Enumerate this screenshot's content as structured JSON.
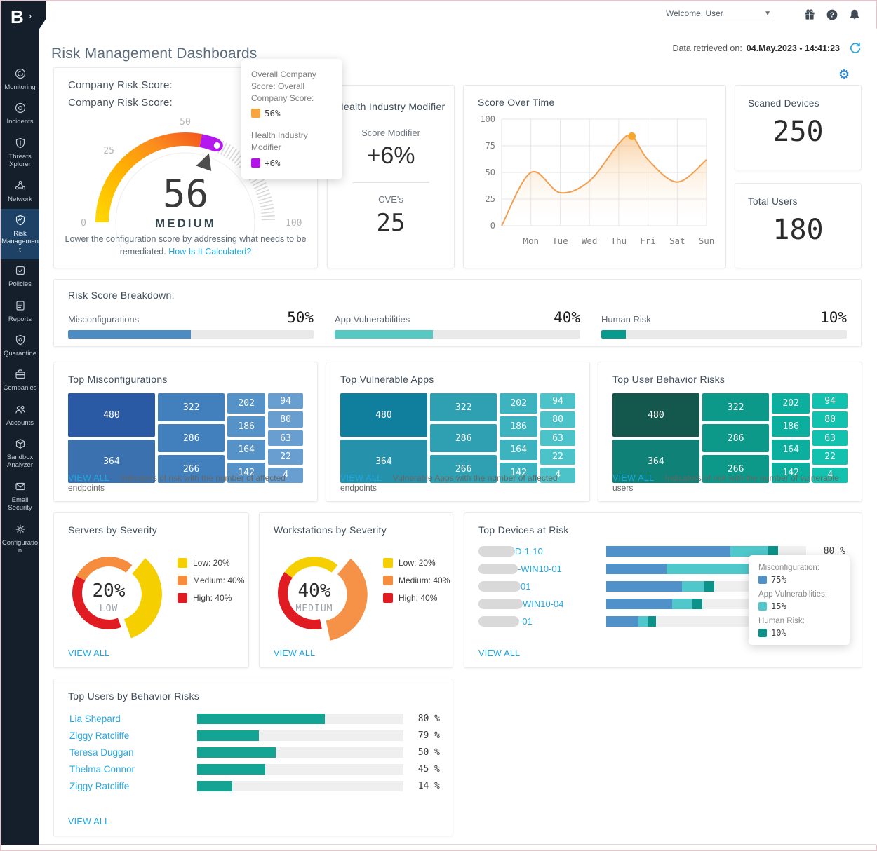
{
  "logo": {
    "letter": "B"
  },
  "topbar": {
    "welcome": "Welcome, User"
  },
  "sidebar": {
    "items": [
      {
        "label": "Monitoring",
        "icon": "monitoring",
        "active": false
      },
      {
        "label": "Incidents",
        "icon": "incidents",
        "active": false
      },
      {
        "label": "Threats Xplorer",
        "icon": "threats",
        "active": false
      },
      {
        "label": "Network",
        "icon": "network",
        "active": false
      },
      {
        "label": "Risk Management",
        "icon": "risk",
        "active": true
      },
      {
        "label": "Policies",
        "icon": "policies",
        "active": false
      },
      {
        "label": "Reports",
        "icon": "reports",
        "active": false
      },
      {
        "label": "Quarantine",
        "icon": "quarantine",
        "active": false
      },
      {
        "label": "Companies",
        "icon": "companies",
        "active": false
      },
      {
        "label": "Accounts",
        "icon": "accounts",
        "active": false
      },
      {
        "label": "Sandbox Analyzer",
        "icon": "sandbox",
        "active": false
      },
      {
        "label": "Email Security",
        "icon": "email",
        "active": false
      },
      {
        "label": "Configuration",
        "icon": "configuration",
        "active": false
      }
    ]
  },
  "header": {
    "title": "Risk Management Dashboards",
    "retrieved_label": "Data retrieved on:",
    "retrieved_value": "04.May.2023 - 14:41:23"
  },
  "company_risk": {
    "label_row1": "Company Risk Score:",
    "label_row2": "Company Risk Score:",
    "score": "56",
    "level": "MEDIUM",
    "description": "Lower the configuration score by addressing what needs to be remediated.",
    "link_label": "How Is It Calculated?",
    "ticks": [
      "0",
      "25",
      "50",
      "100"
    ]
  },
  "score_tooltip": {
    "company_label": "Overall Company Score: Overall Company Score:",
    "company_value": "56%",
    "company_color": "#f9a43c",
    "modifier_label": "Health Industry Modifier",
    "modifier_value": "+6%",
    "modifier_color": "#b312ea"
  },
  "health_modifier": {
    "title": "Health Industry Modifier",
    "score_label": "Score Modifier",
    "score_value": "+6%",
    "cve_label": "CVE's",
    "cve_value": "25"
  },
  "scanned_devices": {
    "title": "Scaned Devices",
    "value": "250"
  },
  "total_users": {
    "title": "Total Users",
    "value": "180"
  },
  "risk_breakdown": {
    "title": "Risk Score Breakdown:",
    "items": [
      {
        "label": "Misconfigurations",
        "value": "50%",
        "pct": 50,
        "color": "#4d8cc3"
      },
      {
        "label": "App Vulnerabilities",
        "value": "40%",
        "pct": 40,
        "color": "#58c8c3"
      },
      {
        "label": "Human Risk",
        "value": "10%",
        "pct": 10,
        "color": "#089a8d"
      }
    ]
  },
  "treemaps": {
    "columns": [
      [
        480,
        364
      ],
      [
        322,
        286,
        266
      ],
      [
        202,
        186,
        164,
        142
      ],
      [
        94,
        80,
        63,
        22,
        4
      ]
    ],
    "col_widths": [
      "37%",
      "28.5%",
      "16%",
      "15%"
    ],
    "cards": [
      {
        "title": "Top Misconfigurations",
        "view_all": "VIEW ALL",
        "caption": "Indicators of risk with the number of affected endpoints",
        "palette": [
          "#2b5aa5",
          "#3a71ae",
          "#4280bd",
          "#5492c7",
          "#699fd0"
        ]
      },
      {
        "title": "Top Vulnerable Apps",
        "view_all": "VIEW ALL",
        "caption": "Vulnerable Apps with the number of affected endpoints",
        "palette": [
          "#0f7f9d",
          "#2691aa",
          "#2fa0b2",
          "#3db3bf",
          "#4cc3c9"
        ]
      },
      {
        "title": "Top User Behavior Risks",
        "view_all": "VIEW ALL",
        "caption": "Indicators of risk with the number of vulnerable users",
        "palette": [
          "#14574d",
          "#0f8176",
          "#0d998a",
          "#0caf9e",
          "#12c2ae"
        ]
      }
    ]
  },
  "severity_donuts": [
    {
      "title": "Servers by Severity",
      "center_value": "20%",
      "center_label": "LOW",
      "view_all": "VIEW ALL",
      "legend": [
        {
          "label": "Low: 20%",
          "color": "#f6cf01"
        },
        {
          "label": "Medium: 40%",
          "color": "#f68d3e"
        },
        {
          "label": "High: 40%",
          "color": "#e11b22"
        }
      ],
      "segments": [
        {
          "name": "medium",
          "color": "#f68d3e",
          "start": -62,
          "end": 40,
          "exploded": false
        },
        {
          "name": "low",
          "color": "#f6cf01",
          "start": 40,
          "end": 160,
          "exploded": true
        },
        {
          "name": "high",
          "color": "#e11b22",
          "start": 160,
          "end": 298,
          "exploded": false
        }
      ]
    },
    {
      "title": "Workstations by Severity",
      "center_value": "40%",
      "center_label": "MEDIUM",
      "view_all": "VIEW ALL",
      "legend": [
        {
          "label": "Low: 20%",
          "color": "#f6cf01"
        },
        {
          "label": "Medium: 40%",
          "color": "#f68d3e"
        },
        {
          "label": "High: 40%",
          "color": "#e11b22"
        }
      ],
      "segments": [
        {
          "name": "low",
          "color": "#f6cf01",
          "start": -55,
          "end": 40,
          "exploded": false
        },
        {
          "name": "medium",
          "color": "#f59247",
          "start": 40,
          "end": 168,
          "exploded": true
        },
        {
          "name": "high",
          "color": "#e11b22",
          "start": 168,
          "end": 305,
          "exploded": false
        }
      ]
    }
  ],
  "top_devices": {
    "title": "Top Devices at Risk",
    "view_all": "VIEW ALL",
    "colors": [
      "#5191ca",
      "#4fc7cb",
      "#0b9389"
    ],
    "rows": [
      {
        "name": "D-1-10",
        "pill": 52,
        "segments": [
          62,
          19,
          5
        ],
        "pct": "80 %"
      },
      {
        "name": "-WIN10-01",
        "pill": 56,
        "segments": [
          30,
          48,
          4
        ],
        "pct": ""
      },
      {
        "name": "01",
        "pill": 60,
        "segments": [
          38,
          11,
          5
        ],
        "pct": ""
      },
      {
        "name": "WIN10-04",
        "pill": 63,
        "segments": [
          33,
          10,
          5
        ],
        "pct": ""
      },
      {
        "name": "-01",
        "pill": 58,
        "segments": [
          16,
          5,
          4
        ],
        "pct": ""
      }
    ]
  },
  "devices_tooltip": {
    "items": [
      {
        "label": "Misconfiguration:",
        "value": "75%",
        "color": "#5191ca"
      },
      {
        "label": "App Vulnerabilities:",
        "value": "15%",
        "color": "#4fc7cb"
      },
      {
        "label": "Human Risk:",
        "value": "10%",
        "color": "#0b9389"
      }
    ]
  },
  "top_users": {
    "title": "Top Users by Behavior Risks",
    "view_all": "VIEW ALL",
    "bar_color": "#13a493",
    "rows": [
      {
        "name": "Lia Shepard",
        "pct": "80 %",
        "bar": 62
      },
      {
        "name": "Ziggy Ratcliffe",
        "pct": "79 %",
        "bar": 30
      },
      {
        "name": "Teresa Duggan",
        "pct": "50 %",
        "bar": 38
      },
      {
        "name": "Thelma Connor",
        "pct": "45 %",
        "bar": 33
      },
      {
        "name": "Ziggy Ratcliffe",
        "pct": "14 %",
        "bar": 17
      }
    ]
  },
  "chart_data": [
    {
      "type": "area",
      "title": "Score Over Time",
      "x_labels": [
        "Mon",
        "Tue",
        "Wed",
        "Thu",
        "Fri",
        "Sat",
        "Sun"
      ],
      "y_ticks": [
        0,
        25,
        50,
        75,
        100
      ],
      "ylim": [
        0,
        100
      ],
      "grid": true,
      "line_color": "#f19f52",
      "marker_color": "#f5a72e",
      "points": [
        [
          0,
          0
        ],
        [
          1,
          50
        ],
        [
          2,
          31
        ],
        [
          3,
          42
        ],
        [
          4,
          77
        ],
        [
          4.45,
          84
        ],
        [
          5,
          62
        ],
        [
          6,
          41
        ],
        [
          7,
          62
        ]
      ],
      "marker": [
        4.45,
        84
      ],
      "note": "x in day units where 1=Mon ... 7=Sun; curve starts at 0 before Mon"
    },
    {
      "type": "gauge",
      "title": "Company Risk Score",
      "value": 56,
      "modifier": 6,
      "max": 100,
      "level": "MEDIUM"
    },
    {
      "type": "pie",
      "title": "Servers by Severity",
      "labels": [
        "Low",
        "Medium",
        "High"
      ],
      "values": [
        20,
        40,
        40
      ]
    },
    {
      "type": "pie",
      "title": "Workstations by Severity",
      "labels": [
        "Low",
        "Medium",
        "High"
      ],
      "values": [
        20,
        40,
        40
      ]
    },
    {
      "type": "bar",
      "title": "Top Users by Behavior Risks",
      "categories": [
        "Lia Shepard",
        "Ziggy Ratcliffe",
        "Teresa Duggan",
        "Thelma Connor",
        "Ziggy Ratcliffe"
      ],
      "values": [
        80,
        79,
        50,
        45,
        14
      ]
    },
    {
      "type": "treemap",
      "title": "Top Misconfigurations / Top Vulnerable Apps / Top User Behavior Risks",
      "values": [
        480,
        364,
        322,
        286,
        266,
        202,
        186,
        164,
        142,
        94,
        80,
        63,
        22,
        4
      ]
    }
  ]
}
